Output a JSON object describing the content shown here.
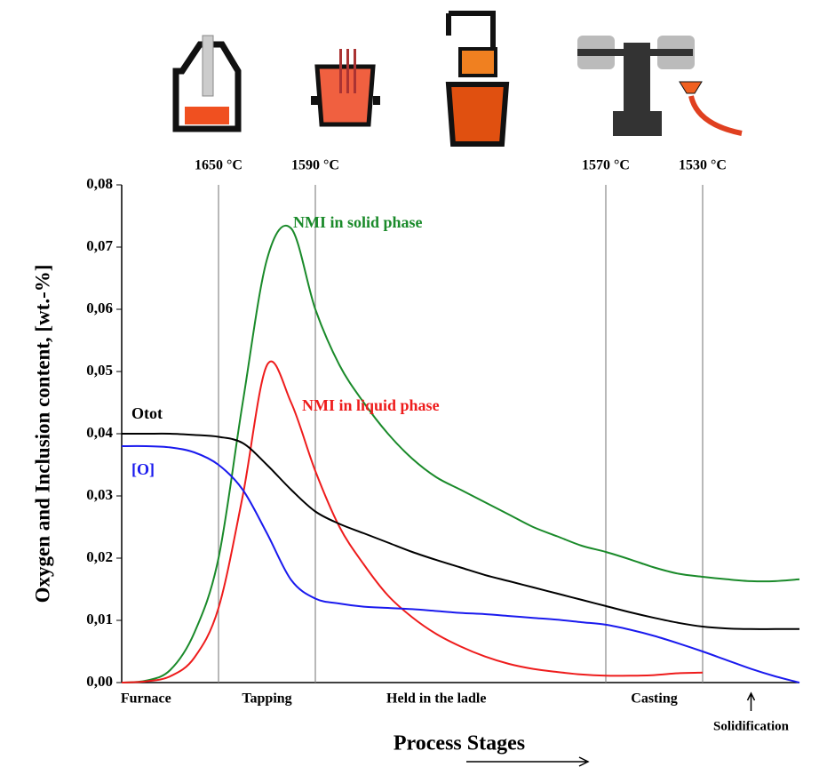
{
  "chart_data": {
    "type": "line",
    "y_label": "Oxygen and Inclusion content, [wt.-%]",
    "x_label": "Process Stages",
    "categories": [
      null,
      "Furnace",
      null,
      null,
      null,
      null,
      "Tapping",
      null,
      null,
      null,
      null,
      null,
      null,
      "Held in the ladle",
      null,
      null,
      null,
      null,
      null,
      null,
      null,
      null,
      "Casting",
      null,
      null,
      null,
      "Solidification",
      null,
      null
    ],
    "markers": [
      {
        "index": 4,
        "label": "1650 °C"
      },
      {
        "index": 8,
        "label": "1590 °C"
      },
      {
        "index": 20,
        "label": "1570 °C"
      },
      {
        "index": 24,
        "label": "1530 °C"
      }
    ],
    "ylim": [
      0,
      0.08
    ],
    "yticks": [
      {
        "value": 0,
        "label": "0,00"
      },
      {
        "value": 0.01,
        "label": "0,01"
      },
      {
        "value": 0.02,
        "label": "0,02"
      },
      {
        "value": 0.03,
        "label": "0,03"
      },
      {
        "value": 0.04,
        "label": "0,04"
      },
      {
        "value": 0.05,
        "label": "0,05"
      },
      {
        "value": 0.06,
        "label": "0,06"
      },
      {
        "value": 0.07,
        "label": "0,07"
      },
      {
        "value": 0.08,
        "label": "0,08"
      }
    ],
    "series": [
      {
        "name": "NMI in solid phase",
        "color": "#1a8a2a",
        "values": [
          0,
          0.0003,
          0.002,
          0.008,
          0.02,
          0.045,
          0.068,
          0.073,
          0.06,
          0.051,
          0.045,
          0.04,
          0.036,
          0.033,
          0.031,
          0.029,
          0.027,
          0.025,
          0.0235,
          0.022,
          0.021,
          0.0198,
          0.0185,
          0.0175,
          0.017,
          0.0166,
          0.0163,
          0.0163,
          0.0166
        ]
      },
      {
        "name": "NMI in liquid phase",
        "color": "#ee1c1c",
        "values": [
          0,
          0.0002,
          0.001,
          0.004,
          0.012,
          0.03,
          0.051,
          0.045,
          0.034,
          0.025,
          0.019,
          0.014,
          0.0105,
          0.0078,
          0.0058,
          0.0042,
          0.003,
          0.0022,
          0.0017,
          0.0013,
          0.0011,
          0.0011,
          0.0012,
          0.0015,
          0.0016,
          null,
          null,
          null,
          null
        ]
      },
      {
        "name": "Otot",
        "color": "#000000",
        "values": [
          0.04,
          0.04,
          0.04,
          0.0398,
          0.0395,
          0.0385,
          0.035,
          0.031,
          0.0275,
          0.0255,
          0.024,
          0.0225,
          0.021,
          0.0197,
          0.0185,
          0.0173,
          0.0163,
          0.0153,
          0.0143,
          0.0133,
          0.0123,
          0.0113,
          0.0104,
          0.0096,
          0.009,
          0.0087,
          0.0086,
          0.0086,
          0.0086
        ]
      },
      {
        "name": "[O]",
        "color": "#1a1aee",
        "values": [
          0.038,
          0.038,
          0.0378,
          0.037,
          0.035,
          0.031,
          0.024,
          0.0165,
          0.0135,
          0.0127,
          0.0122,
          0.012,
          0.0118,
          0.0115,
          0.0112,
          0.011,
          0.0107,
          0.0104,
          0.0101,
          0.0097,
          0.0093,
          0.0085,
          0.0075,
          0.0063,
          0.005,
          0.0036,
          0.0022,
          0.001,
          0
        ]
      }
    ]
  }
}
